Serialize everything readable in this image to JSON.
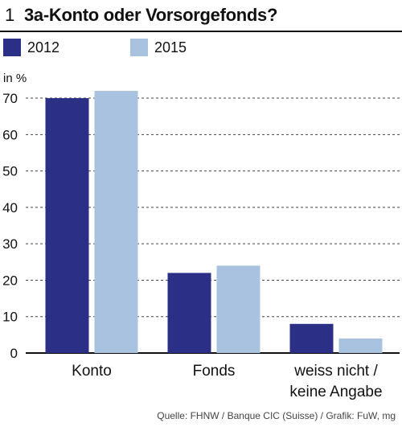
{
  "figure": {
    "number": "1",
    "title": "3a-Konto oder Vorsorgefonds?",
    "source": "Quelle: FHNW / Banque CIC (Suisse)  / Grafik: FuW, mg"
  },
  "colors": {
    "series_2012": "#2b2f86",
    "series_2015": "#a9c2df",
    "grid": "#444444",
    "axis": "#111111"
  },
  "chart_data": {
    "type": "bar",
    "title": "3a-Konto oder Vorsorgefonds?",
    "ylabel": "in %",
    "xlabel": "",
    "ylim": [
      0,
      72
    ],
    "yticks": [
      0,
      10,
      20,
      30,
      40,
      50,
      60,
      70
    ],
    "grid": true,
    "legend_position": "top-left",
    "categories": [
      [
        "Konto"
      ],
      [
        "Fonds"
      ],
      [
        "weiss nicht /",
        "keine Angabe"
      ]
    ],
    "series": [
      {
        "name": "2012",
        "values": [
          70,
          22,
          8
        ]
      },
      {
        "name": "2015",
        "values": [
          72,
          24,
          4
        ]
      }
    ]
  }
}
